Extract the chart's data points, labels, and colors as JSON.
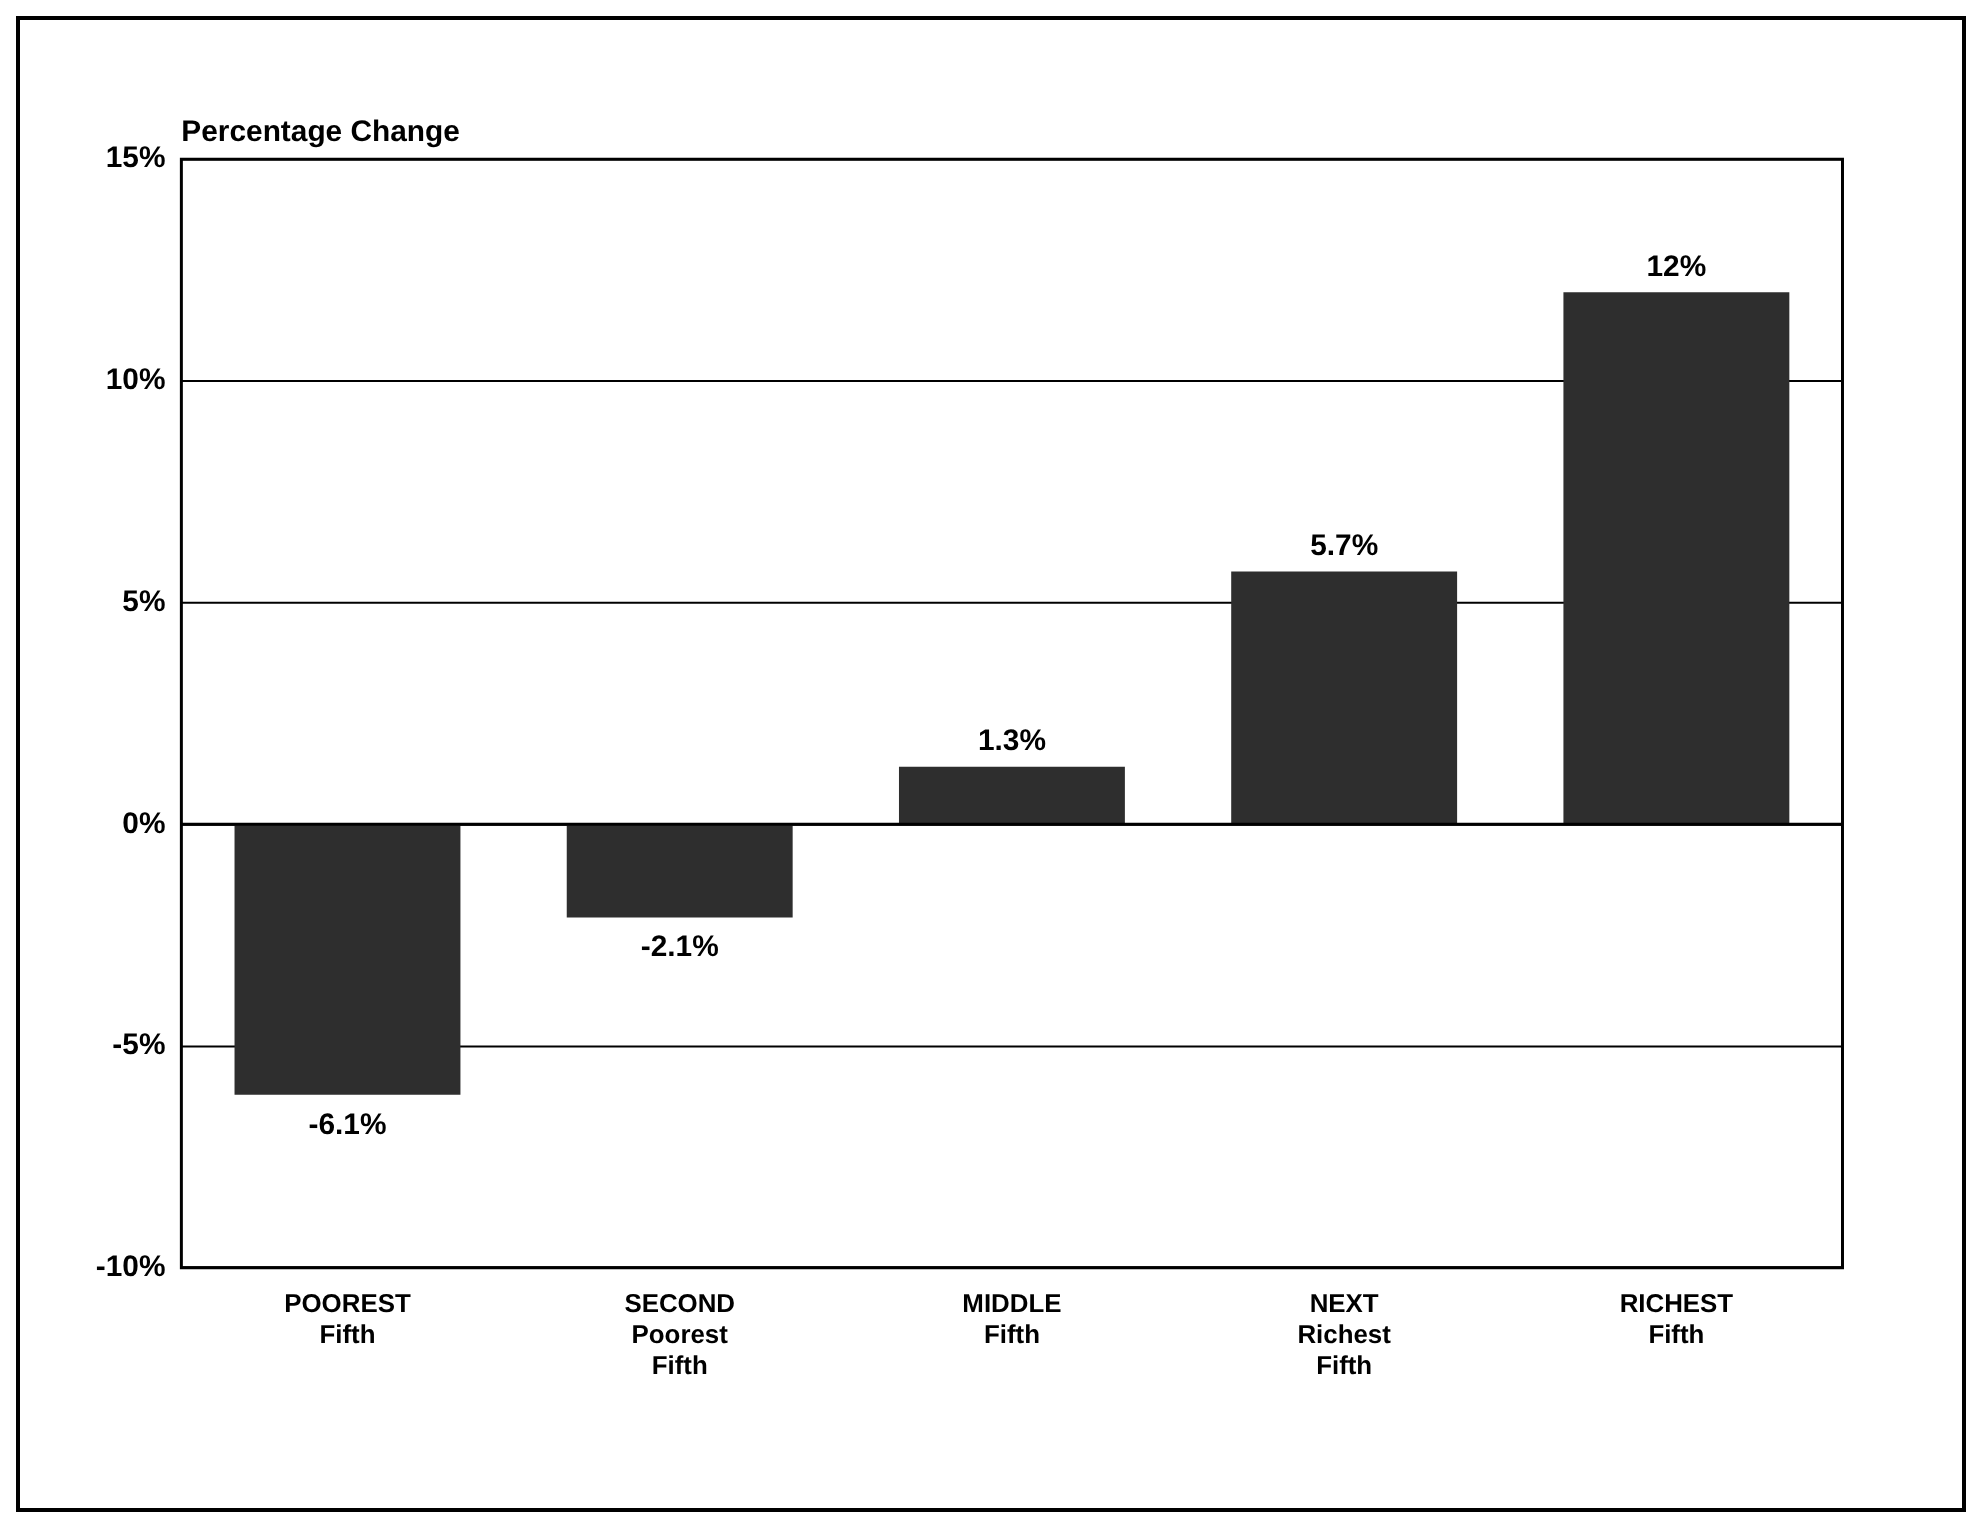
{
  "chart_data": {
    "type": "bar",
    "ylabel": "Percentage Change",
    "categories": [
      "POOREST Fifth",
      "SECOND Poorest Fifth",
      "MIDDLE Fifth",
      "NEXT Richest Fifth",
      "RICHEST Fifth"
    ],
    "values": [
      -6.1,
      -2.1,
      1.3,
      5.7,
      12
    ],
    "value_labels": [
      "-6.1%",
      "-2.1%",
      "1.3%",
      "5.7%",
      "12%"
    ],
    "color": "#2e2e2e",
    "ylim": [
      -10,
      15
    ],
    "yticks": [
      {
        "value": -10,
        "label": "-10%"
      },
      {
        "value": -5,
        "label": "-5%"
      },
      {
        "value": 0,
        "label": "0%"
      },
      {
        "value": 5,
        "label": "5%"
      },
      {
        "value": 10,
        "label": "10%"
      },
      {
        "value": 15,
        "label": "15%"
      }
    ],
    "grid": "y",
    "legend": false
  }
}
